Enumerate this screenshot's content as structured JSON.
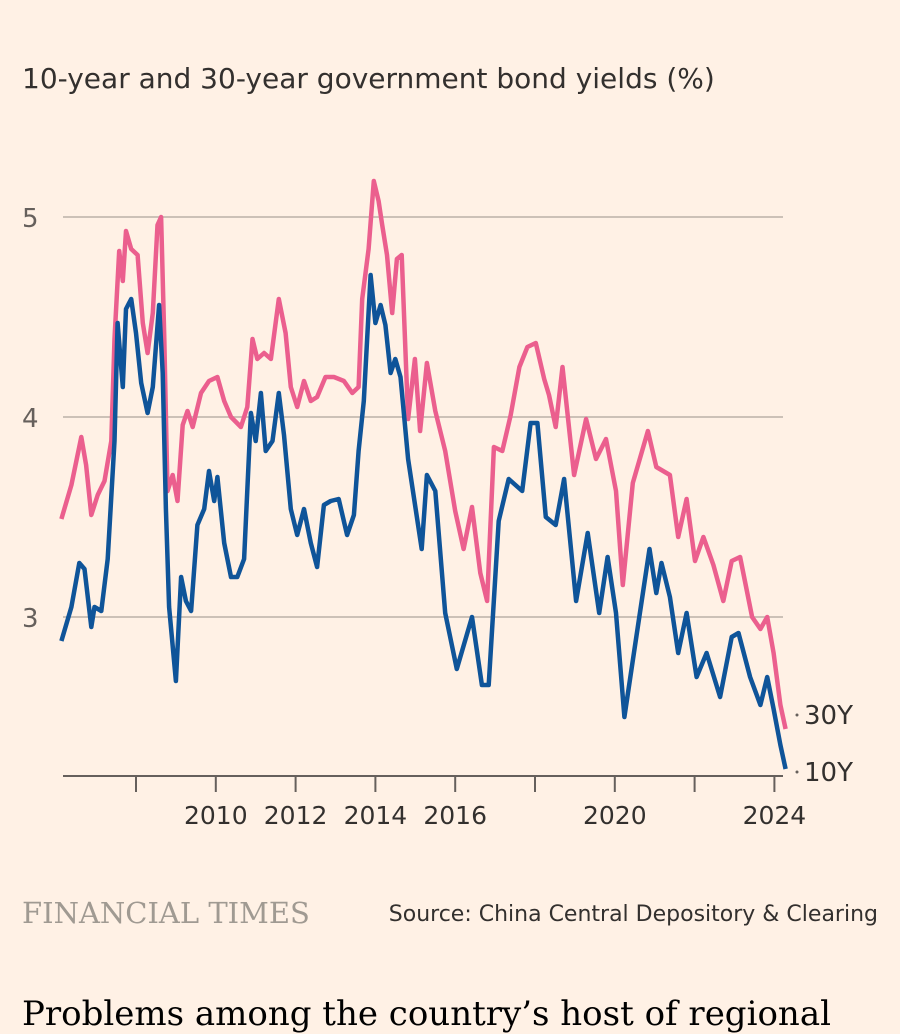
{
  "chart_data": {
    "type": "line",
    "title": "10-year and 30-year government bond yields (%)",
    "xlabel": "",
    "ylabel": "",
    "xlim": [
      2006.2,
      2024.3
    ],
    "ylim": [
      2.2,
      5.2
    ],
    "yticks": [
      3,
      4,
      5
    ],
    "ytick_labels": [
      "3",
      "4",
      "5"
    ],
    "xticks": [
      2008,
      2010,
      2012,
      2014,
      2016,
      2018,
      2020,
      2022,
      2024
    ],
    "xtick_labels": [
      "",
      "2010",
      "2012",
      "2014",
      "2016",
      "",
      "2020",
      "",
      "2024"
    ],
    "grid": "horizontal",
    "legend": "end-of-line labels, right",
    "series": [
      {
        "name": "30Y",
        "color": "#eb5f8e",
        "x": [
          2006.13,
          2006.38,
          2006.63,
          2006.75,
          2006.88,
          2007.04,
          2007.21,
          2007.38,
          2007.46,
          2007.58,
          2007.67,
          2007.75,
          2007.88,
          2008.04,
          2008.17,
          2008.29,
          2008.42,
          2008.54,
          2008.63,
          2008.71,
          2008.79,
          2008.92,
          2009.04,
          2009.17,
          2009.29,
          2009.42,
          2009.63,
          2009.83,
          2010.04,
          2010.21,
          2010.38,
          2010.63,
          2010.79,
          2010.92,
          2011.04,
          2011.21,
          2011.38,
          2011.58,
          2011.75,
          2011.88,
          2012.04,
          2012.21,
          2012.38,
          2012.54,
          2012.75,
          2012.96,
          2013.21,
          2013.42,
          2013.58,
          2013.67,
          2013.83,
          2013.96,
          2014.08,
          2014.17,
          2014.29,
          2014.42,
          2014.54,
          2014.66,
          2014.82,
          2014.99,
          2015.12,
          2015.29,
          2015.5,
          2015.75,
          2016.0,
          2016.21,
          2016.42,
          2016.63,
          2016.8,
          2016.97,
          2017.18,
          2017.39,
          2017.61,
          2017.81,
          2018.02,
          2018.23,
          2018.35,
          2018.52,
          2018.69,
          2018.98,
          2019.28,
          2019.53,
          2019.78,
          2020.03,
          2020.2,
          2020.45,
          2020.83,
          2021.04,
          2021.38,
          2021.59,
          2021.8,
          2022.01,
          2022.22,
          2022.47,
          2022.72,
          2022.93,
          2023.14,
          2023.44,
          2023.65,
          2023.82,
          2023.98,
          2024.15,
          2024.28
        ],
        "values": [
          3.49,
          3.66,
          3.9,
          3.76,
          3.51,
          3.61,
          3.68,
          3.88,
          4.39,
          4.83,
          4.68,
          4.93,
          4.84,
          4.81,
          4.47,
          4.32,
          4.52,
          4.96,
          5.0,
          4.39,
          3.63,
          3.71,
          3.58,
          3.96,
          4.03,
          3.95,
          4.12,
          4.18,
          4.2,
          4.08,
          4.0,
          3.95,
          4.05,
          4.39,
          4.29,
          4.32,
          4.29,
          4.59,
          4.42,
          4.15,
          4.05,
          4.18,
          4.08,
          4.1,
          4.2,
          4.2,
          4.18,
          4.12,
          4.15,
          4.59,
          4.84,
          5.18,
          5.08,
          4.96,
          4.81,
          4.52,
          4.79,
          4.81,
          3.99,
          4.29,
          3.93,
          4.27,
          4.03,
          3.83,
          3.53,
          3.34,
          3.55,
          3.22,
          3.08,
          3.85,
          3.83,
          4.01,
          4.25,
          4.35,
          4.37,
          4.19,
          4.11,
          3.95,
          4.25,
          3.71,
          3.99,
          3.79,
          3.89,
          3.63,
          3.16,
          3.67,
          3.93,
          3.75,
          3.71,
          3.4,
          3.59,
          3.28,
          3.4,
          3.26,
          3.08,
          3.28,
          3.3,
          3.0,
          2.94,
          3.0,
          2.82,
          2.56,
          2.44
        ]
      },
      {
        "name": "10Y",
        "color": "#0f5499",
        "x": [
          2006.13,
          2006.38,
          2006.58,
          2006.71,
          2006.88,
          2006.96,
          2007.13,
          2007.29,
          2007.46,
          2007.54,
          2007.67,
          2007.75,
          2007.88,
          2008.0,
          2008.13,
          2008.29,
          2008.42,
          2008.58,
          2008.67,
          2008.75,
          2008.83,
          2009.0,
          2009.13,
          2009.25,
          2009.38,
          2009.54,
          2009.71,
          2009.83,
          2009.96,
          2010.04,
          2010.21,
          2010.38,
          2010.54,
          2010.71,
          2010.88,
          2011.0,
          2011.13,
          2011.25,
          2011.42,
          2011.58,
          2011.71,
          2011.88,
          2012.04,
          2012.21,
          2012.38,
          2012.54,
          2012.71,
          2012.88,
          2013.08,
          2013.29,
          2013.46,
          2013.58,
          2013.71,
          2013.88,
          2014.0,
          2014.13,
          2014.25,
          2014.38,
          2014.5,
          2014.63,
          2014.82,
          2015.16,
          2015.29,
          2015.5,
          2015.75,
          2016.04,
          2016.42,
          2016.67,
          2016.84,
          2017.09,
          2017.34,
          2017.68,
          2017.89,
          2018.06,
          2018.27,
          2018.52,
          2018.73,
          2019.03,
          2019.32,
          2019.61,
          2019.82,
          2020.03,
          2020.24,
          2020.54,
          2020.87,
          2021.04,
          2021.17,
          2021.38,
          2021.59,
          2021.8,
          2022.05,
          2022.3,
          2022.64,
          2022.93,
          2023.1,
          2023.39,
          2023.65,
          2023.82,
          2023.98,
          2024.15,
          2024.28
        ],
        "values": [
          2.88,
          3.05,
          3.27,
          3.24,
          2.95,
          3.05,
          3.03,
          3.29,
          3.88,
          4.47,
          4.15,
          4.54,
          4.59,
          4.42,
          4.17,
          4.02,
          4.15,
          4.56,
          4.22,
          3.54,
          3.05,
          2.68,
          3.2,
          3.08,
          3.03,
          3.46,
          3.54,
          3.73,
          3.58,
          3.7,
          3.37,
          3.2,
          3.2,
          3.29,
          4.02,
          3.88,
          4.12,
          3.83,
          3.88,
          4.12,
          3.91,
          3.54,
          3.41,
          3.54,
          3.37,
          3.25,
          3.56,
          3.58,
          3.59,
          3.41,
          3.51,
          3.83,
          4.08,
          4.71,
          4.47,
          4.56,
          4.46,
          4.22,
          4.29,
          4.2,
          3.79,
          3.34,
          3.71,
          3.63,
          3.02,
          2.74,
          3.0,
          2.66,
          2.66,
          3.48,
          3.69,
          3.63,
          3.97,
          3.97,
          3.5,
          3.46,
          3.69,
          3.08,
          3.42,
          3.02,
          3.3,
          3.02,
          2.5,
          2.9,
          3.34,
          3.12,
          3.27,
          3.1,
          2.82,
          3.02,
          2.7,
          2.82,
          2.6,
          2.9,
          2.92,
          2.7,
          2.56,
          2.7,
          2.54,
          2.36,
          2.24
        ]
      }
    ],
    "colors": {
      "background": "#fff1e5",
      "grid": "#ccc1b7",
      "axis": "#66605c"
    }
  },
  "footer": {
    "brand": "FINANCIAL TIMES",
    "source": "Source: China Central Depository & Clearing"
  },
  "article": {
    "text": "Problems among the country’s host of regional"
  }
}
